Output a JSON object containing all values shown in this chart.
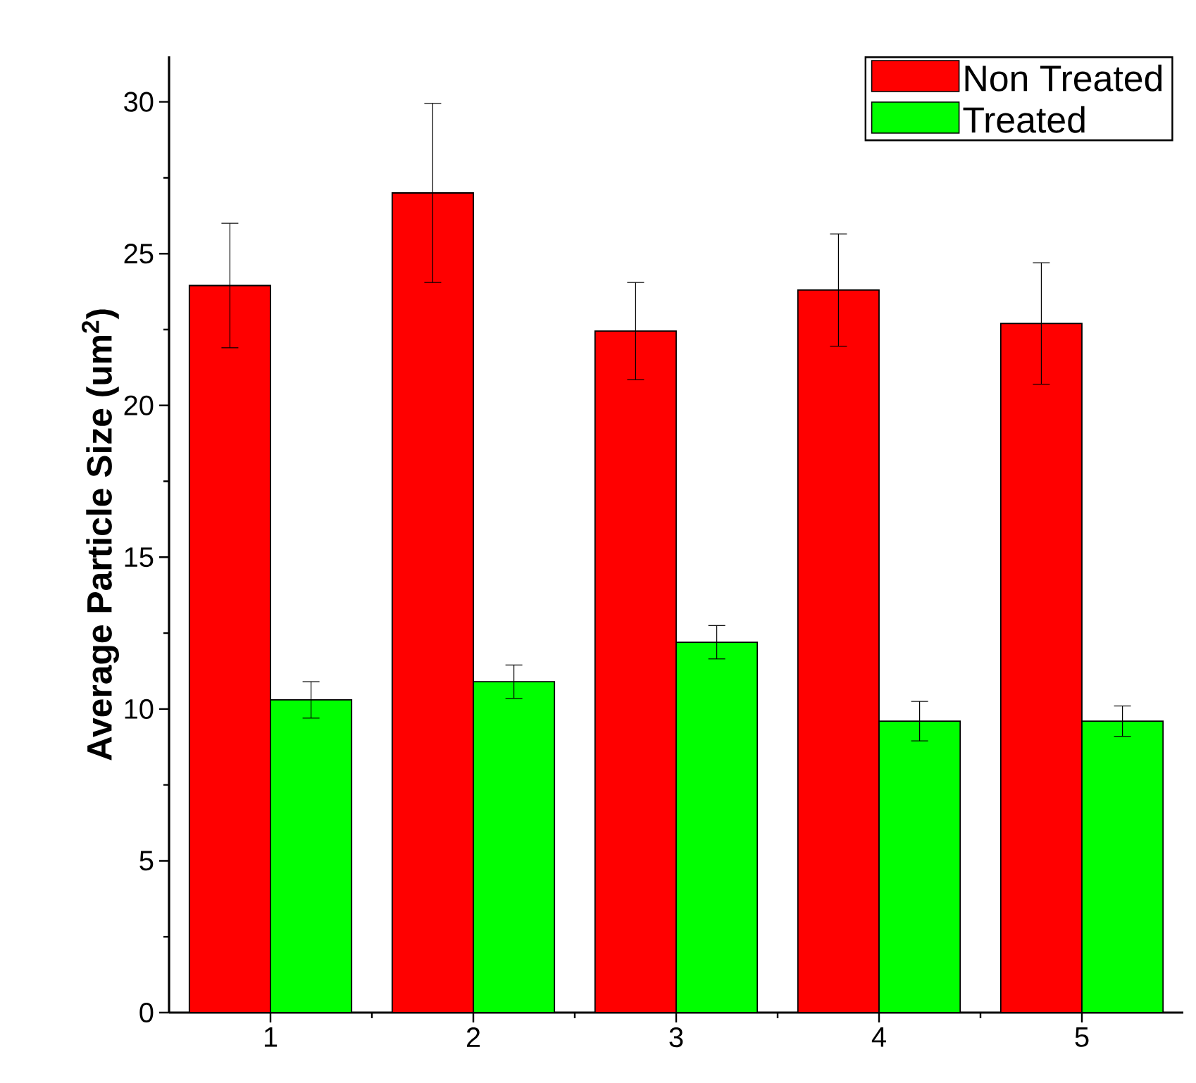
{
  "chart_data": {
    "type": "bar",
    "ylabel": "Average Particle Size (um$^{2}$)",
    "categories": [
      "1",
      "2",
      "3",
      "4",
      "5"
    ],
    "series": [
      {
        "name": "Non Treated",
        "color": "#ff0000",
        "values": [
          23.95,
          27.0,
          22.45,
          23.8,
          22.7
        ],
        "errors": [
          2.05,
          2.95,
          1.6,
          1.85,
          2.0
        ]
      },
      {
        "name": "Treated",
        "color": "#00ff00",
        "values": [
          10.3,
          10.9,
          12.2,
          9.6,
          9.6
        ],
        "errors": [
          0.6,
          0.55,
          0.55,
          0.65,
          0.5
        ]
      }
    ],
    "ylim": [
      0,
      31.5
    ],
    "yticks": [
      0,
      5,
      10,
      15,
      20,
      25,
      30
    ],
    "legend": "top right"
  }
}
